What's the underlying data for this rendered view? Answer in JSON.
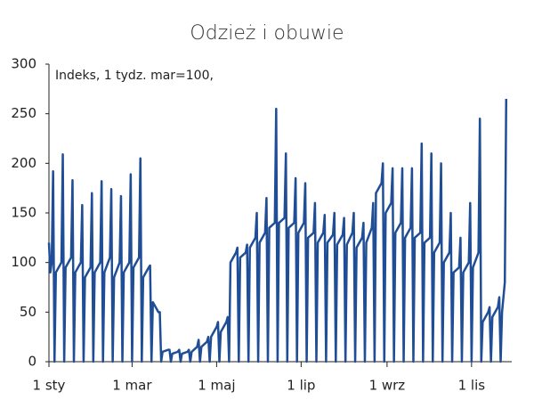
{
  "chart_data": {
    "type": "line",
    "title": "Odzież i obuwie",
    "annotation": "Indeks, 1 tydz. mar=100,",
    "color": "#1f4e96",
    "x": [
      0,
      1,
      2,
      3,
      4,
      5,
      9,
      10,
      11,
      12,
      16,
      17,
      18,
      19,
      23,
      24,
      25,
      26,
      30,
      31,
      32,
      33,
      37,
      38,
      39,
      40,
      44,
      45,
      46,
      47,
      51,
      52,
      53,
      54,
      58,
      59,
      60,
      61,
      65,
      66,
      67,
      68,
      72,
      73,
      74,
      75,
      79,
      80,
      81,
      82,
      86,
      87,
      88,
      89,
      93,
      94,
      95,
      96,
      100,
      101,
      102,
      103,
      107,
      108,
      109,
      110,
      114,
      115,
      116,
      117,
      121,
      122,
      123,
      124,
      128,
      129,
      130,
      131,
      135,
      136,
      137,
      138,
      142,
      143,
      144,
      145,
      149,
      150,
      151,
      152,
      156,
      157,
      158,
      159,
      163,
      164,
      165,
      166,
      170,
      171,
      172,
      173,
      177,
      178,
      179,
      180,
      184,
      185,
      186,
      187,
      191,
      192,
      193,
      194,
      198,
      199,
      200,
      201,
      205,
      206,
      207,
      208,
      212,
      213,
      214,
      215,
      219,
      220,
      221,
      222,
      226,
      227,
      228,
      229,
      233,
      234,
      235,
      236,
      240,
      241,
      242,
      243,
      247,
      248,
      249,
      250,
      254,
      255,
      256,
      257,
      261,
      262,
      263,
      264,
      268,
      269,
      270,
      271,
      275,
      276,
      277,
      278,
      282,
      283,
      284,
      285,
      289,
      290,
      291,
      292,
      296,
      297,
      298,
      299,
      303,
      304,
      305,
      306,
      310,
      311,
      312,
      313,
      317,
      318,
      319,
      320,
      324,
      325,
      326,
      327,
      329,
      330
    ],
    "values": [
      120,
      90,
      100,
      192,
      0,
      90,
      100,
      209,
      0,
      95,
      105,
      183,
      0,
      90,
      100,
      158,
      0,
      85,
      95,
      170,
      0,
      90,
      100,
      182,
      0,
      90,
      105,
      174,
      0,
      85,
      100,
      167,
      0,
      90,
      100,
      189,
      0,
      95,
      105,
      205,
      0,
      85,
      95,
      97,
      0,
      60,
      50,
      50,
      0,
      10,
      12,
      12,
      0,
      8,
      10,
      12,
      0,
      8,
      10,
      12,
      0,
      10,
      15,
      22,
      0,
      15,
      20,
      25,
      0,
      25,
      35,
      40,
      0,
      30,
      40,
      45,
      0,
      100,
      110,
      115,
      0,
      105,
      110,
      118,
      0,
      115,
      125,
      150,
      0,
      120,
      130,
      165,
      0,
      135,
      140,
      255,
      0,
      140,
      145,
      210,
      0,
      135,
      140,
      185,
      0,
      130,
      140,
      180,
      0,
      125,
      130,
      160,
      0,
      120,
      130,
      148,
      0,
      120,
      128,
      150,
      0,
      118,
      128,
      145,
      0,
      118,
      130,
      150,
      0,
      115,
      125,
      140,
      0,
      120,
      135,
      160,
      0,
      170,
      180,
      200,
      0,
      150,
      160,
      195,
      0,
      130,
      140,
      195,
      0,
      125,
      135,
      195,
      0,
      125,
      130,
      220,
      0,
      120,
      125,
      210,
      0,
      110,
      120,
      200,
      0,
      100,
      110,
      150,
      0,
      90,
      95,
      125,
      0,
      90,
      100,
      160,
      0,
      95,
      110,
      245,
      0,
      40,
      50,
      55,
      0,
      45,
      55,
      65,
      0,
      50,
      80,
      265
    ],
    "xlim": [
      0,
      334
    ],
    "xticks": [
      {
        "value": 0,
        "label": "1 sty"
      },
      {
        "value": 60,
        "label": "1 mar"
      },
      {
        "value": 121,
        "label": "1 maj"
      },
      {
        "value": 182,
        "label": "1 lip"
      },
      {
        "value": 244,
        "label": "1 wrz"
      },
      {
        "value": 305,
        "label": "1 lis"
      }
    ],
    "ylim": [
      0,
      300
    ],
    "yticks": [
      0,
      50,
      100,
      150,
      200,
      250,
      300
    ]
  }
}
